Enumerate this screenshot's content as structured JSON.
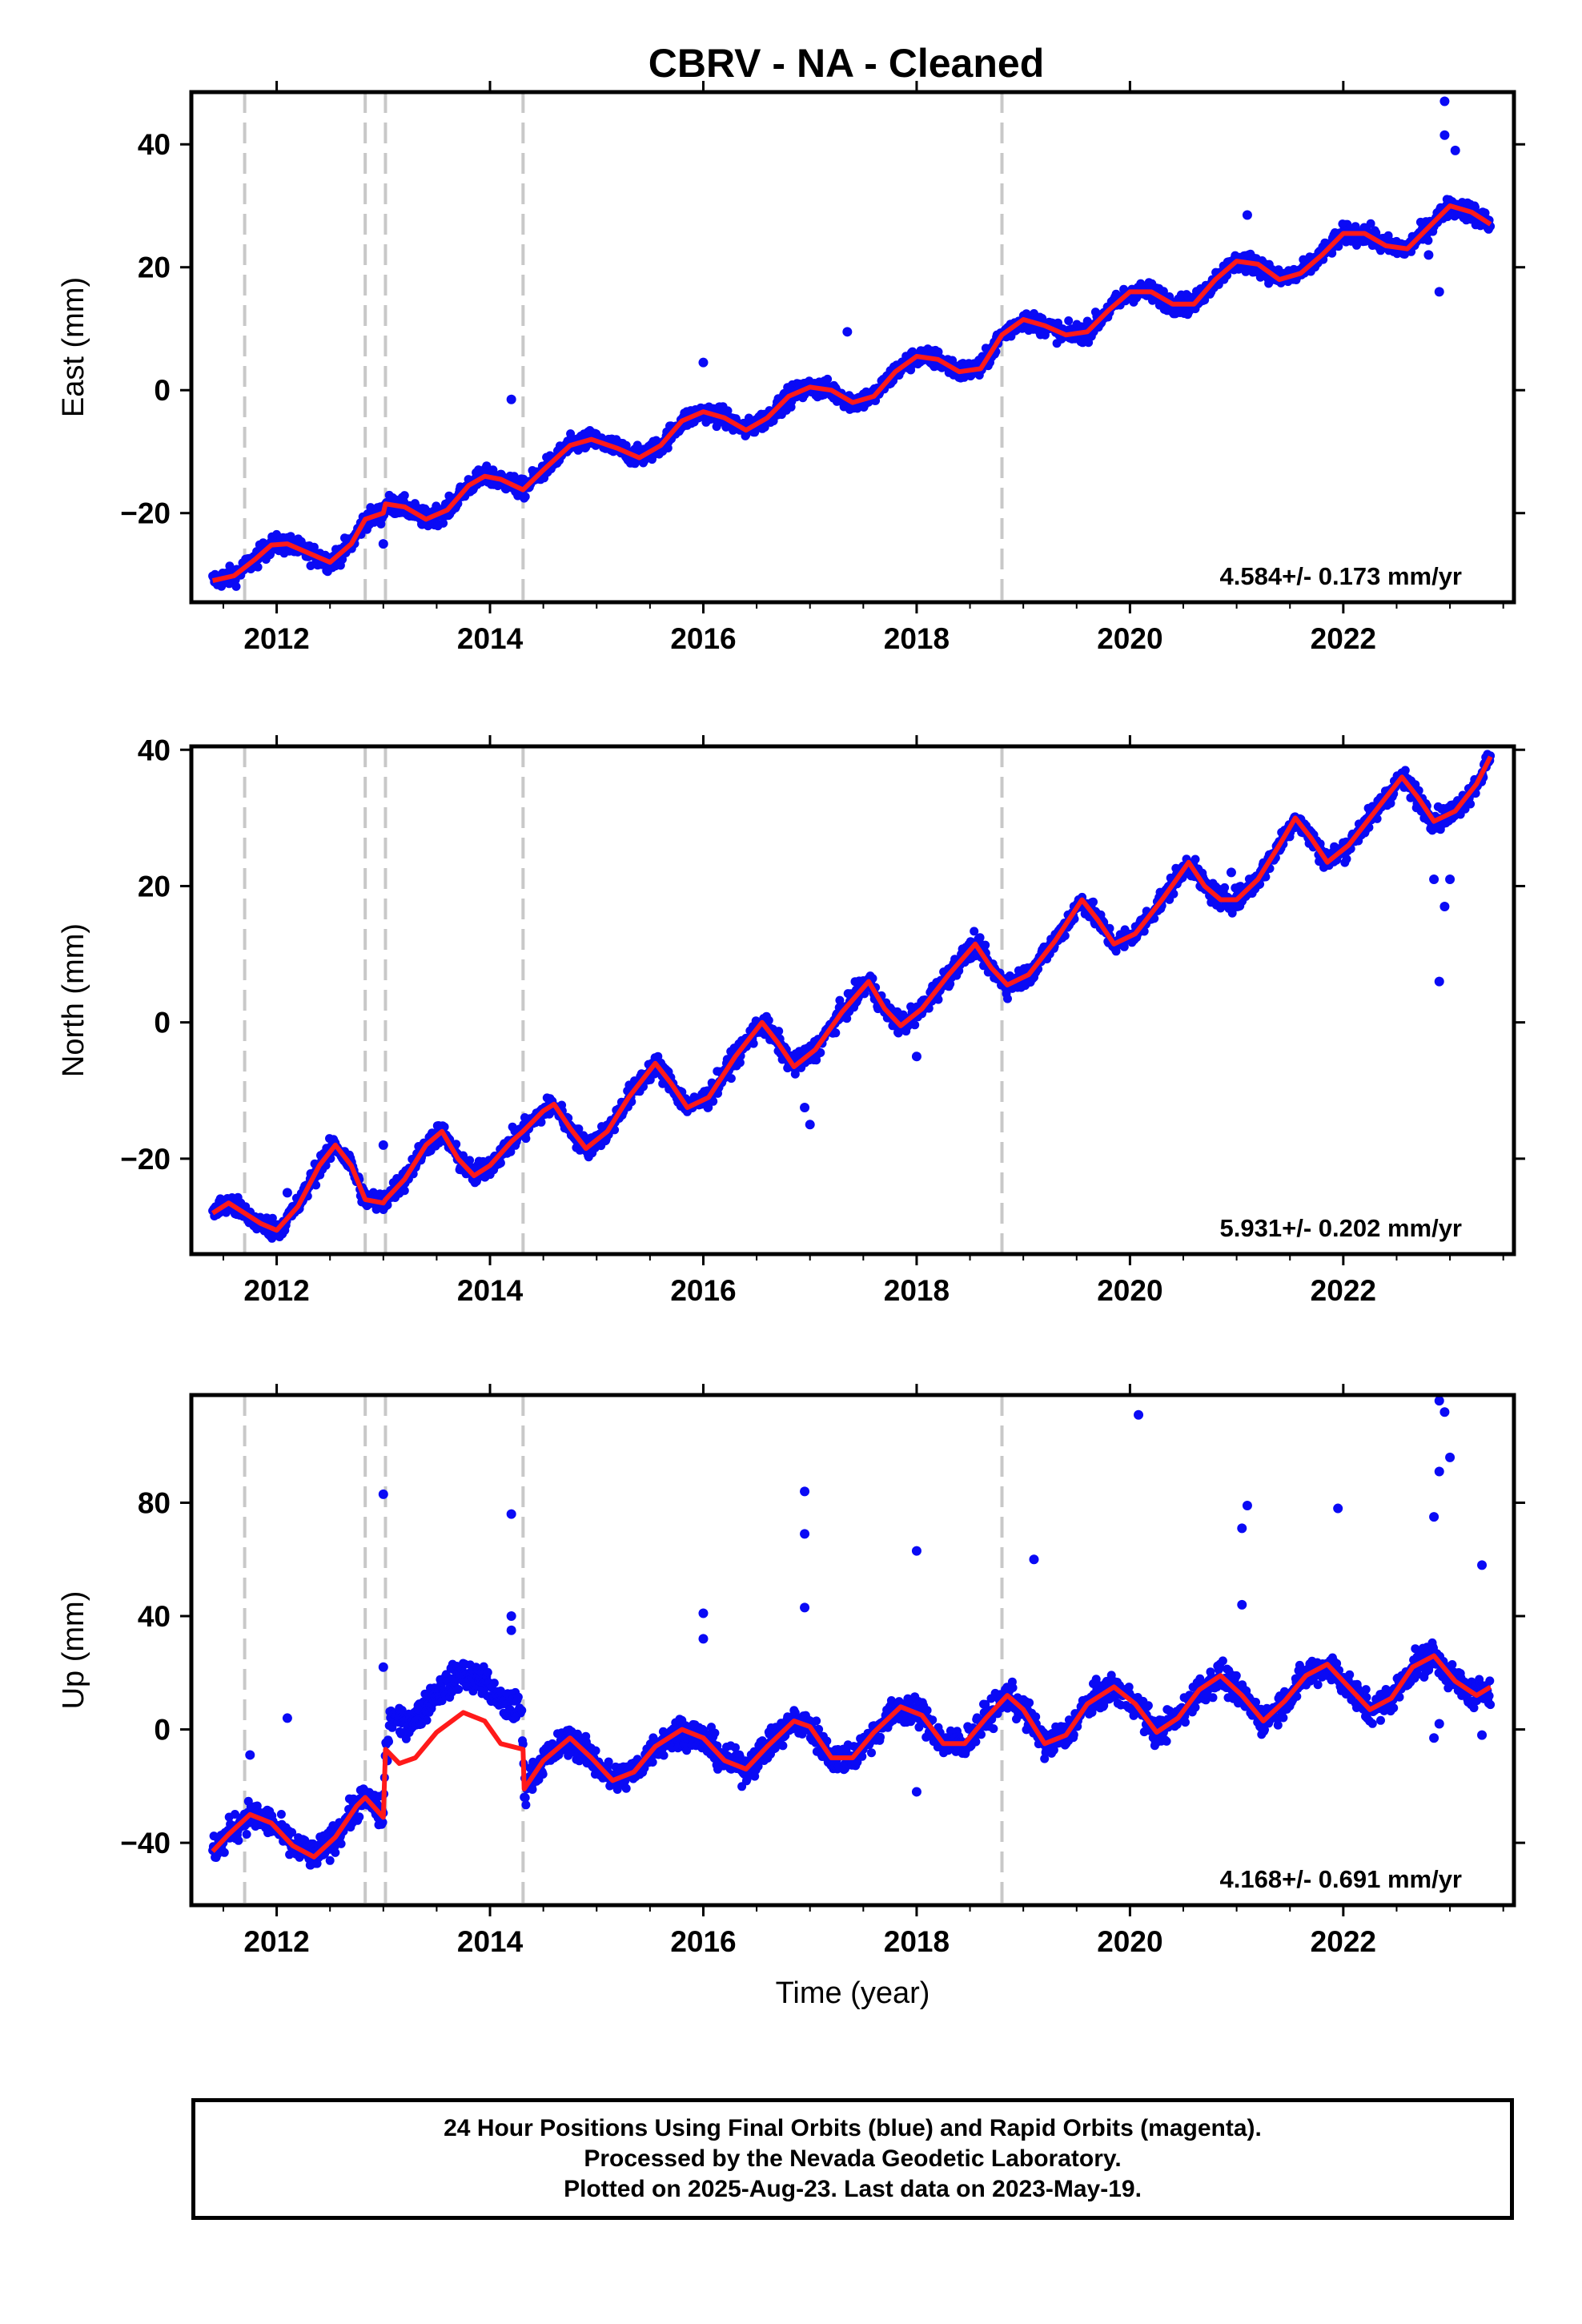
{
  "title": "CBRV  - NA - Cleaned",
  "colors": {
    "data": "#0a0af5",
    "model": "#ff1a1a",
    "breaks": "#c8c8c8"
  },
  "footer": {
    "line1": "24 Hour Positions Using Final Orbits (blue) and Rapid Orbits (magenta).",
    "line2": "Processed by the Nevada Geodetic Laboratory.",
    "line3": "Plotted on 2025-Aug-23. Last data on 2023-May-19."
  },
  "chart_data": [
    {
      "type": "scatter",
      "ylabel": "East (mm)",
      "xlabel": "",
      "xlim": [
        2011.2,
        2023.6
      ],
      "ylim": [
        -34.5,
        48.5
      ],
      "x_ticks": [
        "2012",
        "2014",
        "2016",
        "2018",
        "2020",
        "2022"
      ],
      "y_ticks": [
        "−20",
        "0",
        "20",
        "40"
      ],
      "rate_label": "4.584+/- 0.173 mm/yr",
      "rate": 4.584,
      "breaks": [
        2011.7,
        2012.83,
        2013.02,
        2014.31,
        2018.8
      ],
      "model": [
        [
          2011.4,
          -31
        ],
        [
          2011.6,
          -30.2
        ],
        [
          2011.8,
          -27.5
        ],
        [
          2011.95,
          -25.2
        ],
        [
          2012.1,
          -25
        ],
        [
          2012.3,
          -26.5
        ],
        [
          2012.5,
          -28
        ],
        [
          2012.7,
          -25
        ],
        [
          2012.83,
          -21
        ],
        [
          2013.0,
          -20
        ],
        [
          2013.02,
          -18.5
        ],
        [
          2013.2,
          -19
        ],
        [
          2013.4,
          -21
        ],
        [
          2013.6,
          -19.5
        ],
        [
          2013.8,
          -15.5
        ],
        [
          2013.95,
          -14
        ],
        [
          2014.1,
          -14.5
        ],
        [
          2014.31,
          -16.2
        ],
        [
          2014.5,
          -13
        ],
        [
          2014.75,
          -9
        ],
        [
          2014.95,
          -8
        ],
        [
          2015.2,
          -9.5
        ],
        [
          2015.4,
          -11
        ],
        [
          2015.6,
          -9
        ],
        [
          2015.8,
          -5
        ],
        [
          2016.0,
          -3.5
        ],
        [
          2016.2,
          -4.5
        ],
        [
          2016.4,
          -6.5
        ],
        [
          2016.6,
          -4.5
        ],
        [
          2016.8,
          -1
        ],
        [
          2017.0,
          0.5
        ],
        [
          2017.2,
          0
        ],
        [
          2017.4,
          -2
        ],
        [
          2017.6,
          -1
        ],
        [
          2017.8,
          3
        ],
        [
          2018.0,
          5.5
        ],
        [
          2018.2,
          5
        ],
        [
          2018.4,
          3
        ],
        [
          2018.6,
          3.5
        ],
        [
          2018.8,
          9
        ],
        [
          2019.0,
          11.5
        ],
        [
          2019.2,
          10.5
        ],
        [
          2019.4,
          9
        ],
        [
          2019.6,
          9.5
        ],
        [
          2019.8,
          13
        ],
        [
          2020.0,
          16
        ],
        [
          2020.2,
          16
        ],
        [
          2020.4,
          14
        ],
        [
          2020.6,
          14
        ],
        [
          2020.8,
          18
        ],
        [
          2021.0,
          21
        ],
        [
          2021.2,
          20.5
        ],
        [
          2021.4,
          18
        ],
        [
          2021.6,
          19
        ],
        [
          2021.8,
          22
        ],
        [
          2022.0,
          25.5
        ],
        [
          2022.2,
          25.5
        ],
        [
          2022.4,
          23.5
        ],
        [
          2022.6,
          23
        ],
        [
          2022.8,
          26.5
        ],
        [
          2023.0,
          30
        ],
        [
          2023.2,
          29
        ],
        [
          2023.38,
          27
        ]
      ],
      "outliers": [
        [
          2022.95,
          47
        ],
        [
          2022.95,
          41.5
        ],
        [
          2023.05,
          39
        ],
        [
          2022.9,
          16
        ],
        [
          2014.2,
          -1.5
        ],
        [
          2016.0,
          4.5
        ],
        [
          2013.0,
          -25
        ],
        [
          2017.35,
          9.5
        ],
        [
          2021.1,
          28.5
        ],
        [
          2022.8,
          22
        ]
      ]
    },
    {
      "type": "scatter",
      "ylabel": "North (mm)",
      "xlabel": "",
      "xlim": [
        2011.2,
        2023.6
      ],
      "ylim": [
        -34,
        40.5
      ],
      "x_ticks": [
        "2012",
        "2014",
        "2016",
        "2018",
        "2020",
        "2022"
      ],
      "y_ticks": [
        "−20",
        "0",
        "20",
        "40"
      ],
      "rate_label": "5.931+/- 0.202 mm/yr",
      "rate": 5.931,
      "breaks": [
        2011.7,
        2012.83,
        2013.02,
        2014.31,
        2018.8
      ],
      "model": [
        [
          2011.4,
          -28
        ],
        [
          2011.55,
          -26.5
        ],
        [
          2011.7,
          -28
        ],
        [
          2011.85,
          -29.5
        ],
        [
          2012.0,
          -30.5
        ],
        [
          2012.2,
          -27
        ],
        [
          2012.4,
          -21
        ],
        [
          2012.55,
          -18
        ],
        [
          2012.7,
          -21
        ],
        [
          2012.83,
          -26
        ],
        [
          2013.0,
          -26.5
        ],
        [
          2013.02,
          -26
        ],
        [
          2013.2,
          -23
        ],
        [
          2013.4,
          -18
        ],
        [
          2013.55,
          -16
        ],
        [
          2013.7,
          -20
        ],
        [
          2013.85,
          -22.5
        ],
        [
          2014.0,
          -21
        ],
        [
          2014.2,
          -17.5
        ],
        [
          2014.31,
          -16
        ],
        [
          2014.5,
          -13
        ],
        [
          2014.6,
          -12
        ],
        [
          2014.75,
          -15.5
        ],
        [
          2014.9,
          -18.5
        ],
        [
          2015.1,
          -16
        ],
        [
          2015.3,
          -11
        ],
        [
          2015.55,
          -6
        ],
        [
          2015.7,
          -9
        ],
        [
          2015.85,
          -12.5
        ],
        [
          2016.05,
          -11
        ],
        [
          2016.3,
          -5
        ],
        [
          2016.55,
          0
        ],
        [
          2016.7,
          -3
        ],
        [
          2016.85,
          -6.5
        ],
        [
          2017.05,
          -4
        ],
        [
          2017.3,
          1.5
        ],
        [
          2017.55,
          6
        ],
        [
          2017.7,
          2
        ],
        [
          2017.85,
          -0.5
        ],
        [
          2018.05,
          2
        ],
        [
          2018.3,
          7
        ],
        [
          2018.55,
          11.5
        ],
        [
          2018.7,
          8
        ],
        [
          2018.85,
          5.5
        ],
        [
          2019.05,
          7
        ],
        [
          2019.3,
          12
        ],
        [
          2019.55,
          18
        ],
        [
          2019.7,
          15
        ],
        [
          2019.85,
          11.5
        ],
        [
          2020.05,
          13
        ],
        [
          2020.3,
          18
        ],
        [
          2020.55,
          23.5
        ],
        [
          2020.7,
          20
        ],
        [
          2020.85,
          18
        ],
        [
          2021.0,
          18
        ],
        [
          2021.2,
          21
        ],
        [
          2021.4,
          26
        ],
        [
          2021.55,
          30
        ],
        [
          2021.7,
          27
        ],
        [
          2021.85,
          23.5
        ],
        [
          2022.05,
          26
        ],
        [
          2022.3,
          31
        ],
        [
          2022.55,
          36
        ],
        [
          2022.7,
          33
        ],
        [
          2022.85,
          29.5
        ],
        [
          2023.05,
          31
        ],
        [
          2023.25,
          35
        ],
        [
          2023.38,
          39
        ]
      ],
      "outliers": [
        [
          2022.9,
          6
        ],
        [
          2022.95,
          17
        ],
        [
          2022.85,
          21
        ],
        [
          2023.0,
          21
        ],
        [
          2017.0,
          -15
        ],
        [
          2016.95,
          -12.5
        ],
        [
          2018.0,
          -5
        ],
        [
          2013.0,
          -18
        ],
        [
          2012.1,
          -25
        ],
        [
          2020.95,
          22
        ]
      ]
    },
    {
      "type": "scatter",
      "ylabel": "Up (mm)",
      "xlabel": "Time (year)",
      "xlim": [
        2011.2,
        2023.6
      ],
      "ylim": [
        -62,
        118
      ],
      "x_ticks": [
        "2012",
        "2014",
        "2016",
        "2018",
        "2020",
        "2022"
      ],
      "y_ticks": [
        "−40",
        "0",
        "40",
        "80"
      ],
      "rate_label": "4.168+/- 0.691 mm/yr",
      "rate": 4.168,
      "breaks": [
        2011.7,
        2012.83,
        2013.02,
        2014.31,
        2018.8
      ],
      "model": [
        [
          2011.4,
          -43
        ],
        [
          2011.55,
          -37
        ],
        [
          2011.75,
          -30
        ],
        [
          2011.95,
          -33
        ],
        [
          2012.15,
          -41
        ],
        [
          2012.35,
          -45
        ],
        [
          2012.55,
          -38
        ],
        [
          2012.75,
          -27
        ],
        [
          2012.83,
          -24
        ],
        [
          2013.0,
          -31
        ],
        [
          2013.02,
          -7
        ],
        [
          2013.15,
          -12
        ],
        [
          2013.3,
          -10
        ],
        [
          2013.5,
          -1
        ],
        [
          2013.75,
          6
        ],
        [
          2013.95,
          3
        ],
        [
          2014.1,
          -5
        ],
        [
          2014.31,
          -7
        ],
        [
          2014.32,
          -21
        ],
        [
          2014.5,
          -11
        ],
        [
          2014.75,
          -3
        ],
        [
          2014.95,
          -10
        ],
        [
          2015.15,
          -18
        ],
        [
          2015.35,
          -15
        ],
        [
          2015.55,
          -6
        ],
        [
          2015.8,
          0
        ],
        [
          2016.0,
          -3
        ],
        [
          2016.2,
          -11
        ],
        [
          2016.4,
          -14
        ],
        [
          2016.6,
          -6
        ],
        [
          2016.85,
          3
        ],
        [
          2017.0,
          1
        ],
        [
          2017.2,
          -10
        ],
        [
          2017.4,
          -10
        ],
        [
          2017.6,
          -1
        ],
        [
          2017.85,
          8
        ],
        [
          2018.05,
          5
        ],
        [
          2018.25,
          -5
        ],
        [
          2018.45,
          -5
        ],
        [
          2018.65,
          4
        ],
        [
          2018.85,
          12
        ],
        [
          2019.0,
          7
        ],
        [
          2019.2,
          -5
        ],
        [
          2019.4,
          -2
        ],
        [
          2019.6,
          9
        ],
        [
          2019.85,
          15
        ],
        [
          2020.05,
          9
        ],
        [
          2020.25,
          -1
        ],
        [
          2020.45,
          4
        ],
        [
          2020.65,
          14
        ],
        [
          2020.85,
          19
        ],
        [
          2021.05,
          12
        ],
        [
          2021.25,
          3
        ],
        [
          2021.45,
          10
        ],
        [
          2021.65,
          19
        ],
        [
          2021.85,
          23
        ],
        [
          2022.05,
          15
        ],
        [
          2022.25,
          7
        ],
        [
          2022.45,
          11
        ],
        [
          2022.65,
          22
        ],
        [
          2022.85,
          26
        ],
        [
          2023.05,
          17
        ],
        [
          2023.25,
          12
        ],
        [
          2023.38,
          15
        ]
      ],
      "outliers": [
        [
          2022.9,
          116
        ],
        [
          2022.95,
          112
        ],
        [
          2023.0,
          96
        ],
        [
          2022.9,
          91
        ],
        [
          2022.85,
          75
        ],
        [
          2020.08,
          111
        ],
        [
          2016.95,
          84
        ],
        [
          2016.95,
          69
        ],
        [
          2016.95,
          43
        ],
        [
          2013.0,
          83
        ],
        [
          2014.2,
          76
        ],
        [
          2014.2,
          40
        ],
        [
          2014.2,
          35
        ],
        [
          2018.0,
          63
        ],
        [
          2019.1,
          60
        ],
        [
          2021.1,
          79
        ],
        [
          2021.05,
          71
        ],
        [
          2021.05,
          44
        ],
        [
          2021.95,
          78
        ],
        [
          2023.3,
          58
        ],
        [
          2023.3,
          -2
        ],
        [
          2016.0,
          41
        ],
        [
          2016.0,
          32
        ],
        [
          2022.85,
          -3
        ],
        [
          2022.9,
          2
        ],
        [
          2012.1,
          4
        ],
        [
          2013.0,
          22
        ],
        [
          2011.75,
          -9
        ],
        [
          2018.0,
          -22
        ]
      ]
    }
  ]
}
